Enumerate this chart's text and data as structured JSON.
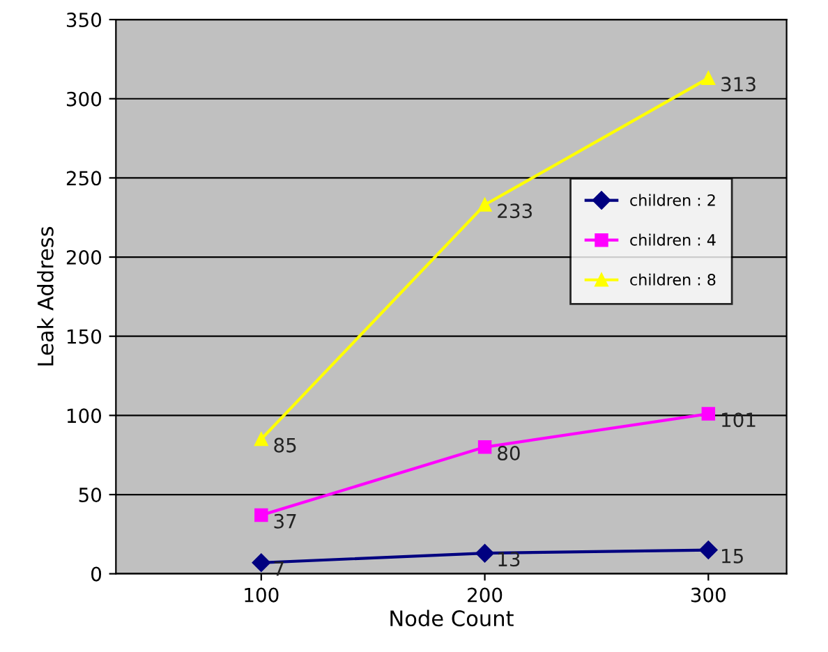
{
  "chart_data": {
    "type": "line",
    "xlabel": "Node Count",
    "ylabel": "Leak Address",
    "x": [
      100,
      200,
      300
    ],
    "xlim": [
      35,
      335
    ],
    "xticks": [
      100,
      200,
      300
    ],
    "series": [
      {
        "name": "children : 2",
        "color": "#000080",
        "marker": "diamond",
        "values": [
          7,
          13,
          15
        ]
      },
      {
        "name": "children : 4",
        "color": "#ff00ff",
        "marker": "square",
        "values": [
          37,
          80,
          101
        ]
      },
      {
        "name": "children : 8",
        "color": "#ffff00",
        "marker": "triangle",
        "values": [
          85,
          233,
          313
        ]
      }
    ],
    "ylim": [
      0,
      350
    ],
    "yticks": [
      0,
      50,
      100,
      150,
      200,
      250,
      300,
      350
    ],
    "grid": "y",
    "legend": "right",
    "data_labels": true
  }
}
